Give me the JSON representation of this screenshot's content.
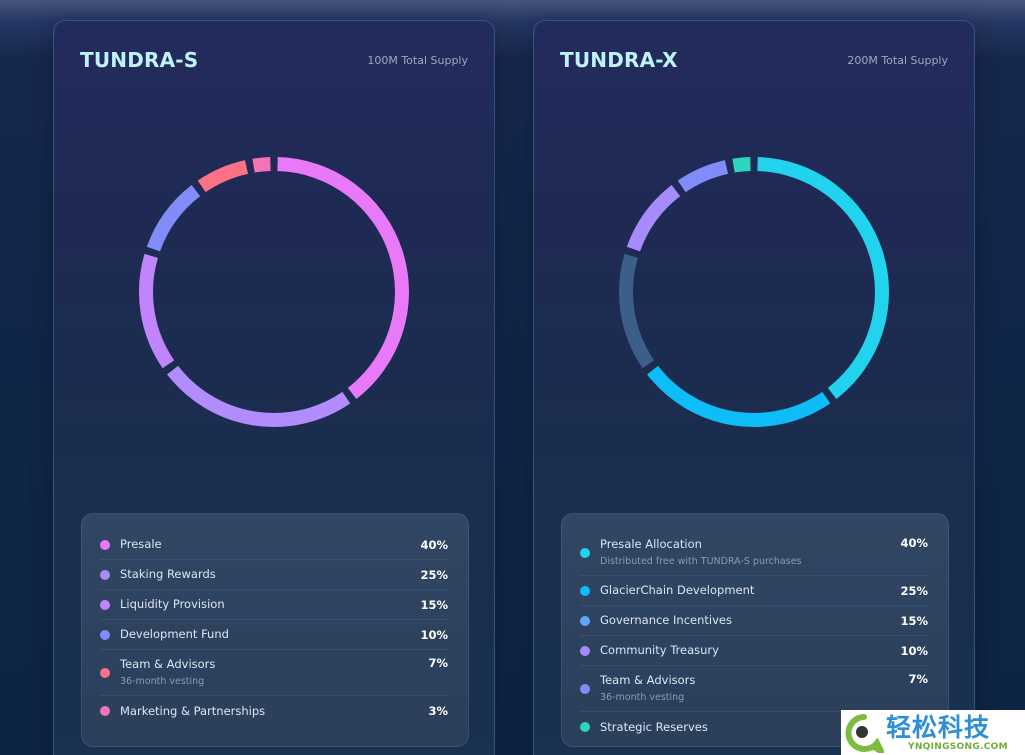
{
  "cards": [
    {
      "title": "TUNDRA-S",
      "supply": "100M Total Supply",
      "items": [
        {
          "label": "Presale",
          "sub": "",
          "pct": "40%",
          "value": 40,
          "color": "#e879f9"
        },
        {
          "label": "Staking Rewards",
          "sub": "",
          "pct": "25%",
          "value": 25,
          "color": "#a78bfa"
        },
        {
          "label": "Liquidity Provision",
          "sub": "",
          "pct": "15%",
          "value": 15,
          "color": "#c084fc"
        },
        {
          "label": "Development Fund",
          "sub": "",
          "pct": "10%",
          "value": 10,
          "color": "#818cf8"
        },
        {
          "label": "Team & Advisors",
          "sub": "36-month vesting",
          "pct": "7%",
          "value": 7,
          "color": "#fb7185"
        },
        {
          "label": "Marketing & Partnerships",
          "sub": "",
          "pct": "3%",
          "value": 3,
          "color": "#f472b6"
        }
      ]
    },
    {
      "title": "TUNDRA-X",
      "supply": "200M Total Supply",
      "items": [
        {
          "label": "Presale Allocation",
          "sub": "Distributed free with TUNDRA-S purchases",
          "pct": "40%",
          "value": 40,
          "color": "#22d3ee"
        },
        {
          "label": "GlacierChain Development",
          "sub": "",
          "pct": "25%",
          "value": 25,
          "color": "#0ebcf7"
        },
        {
          "label": "Governance Incentives",
          "sub": "",
          "pct": "15%",
          "value": 15,
          "color": "#60a5fa"
        },
        {
          "label": "Community Treasury",
          "sub": "",
          "pct": "10%",
          "value": 10,
          "color": "#a78bfa"
        },
        {
          "label": "Team & Advisors",
          "sub": "36-month vesting",
          "pct": "7%",
          "value": 7,
          "color": "#818cf8"
        },
        {
          "label": "Strategic Reserves",
          "sub": "",
          "pct": "3%",
          "value": 3,
          "color": "#2dd4bf"
        }
      ]
    }
  ],
  "chart_data": [
    {
      "type": "pie",
      "title": "TUNDRA-S",
      "subtitle": "100M Total Supply",
      "categories": [
        "Presale",
        "Staking Rewards",
        "Liquidity Provision",
        "Development Fund",
        "Team & Advisors",
        "Marketing & Partnerships"
      ],
      "values": [
        40,
        25,
        15,
        10,
        7,
        3
      ],
      "unit": "%",
      "donut": true,
      "arc_colors": [
        "#e879f9",
        "#b18cfc",
        "#c084fc",
        "#818cf8",
        "#fb7185",
        "#f472b6"
      ],
      "annotations": {
        "Team & Advisors": "36-month vesting"
      },
      "legend_position": "bottom"
    },
    {
      "type": "pie",
      "title": "TUNDRA-X",
      "subtitle": "200M Total Supply",
      "categories": [
        "Presale Allocation",
        "GlacierChain Development",
        "Governance Incentives",
        "Community Treasury",
        "Team & Advisors",
        "Strategic Reserves"
      ],
      "values": [
        40,
        25,
        15,
        10,
        7,
        3
      ],
      "unit": "%",
      "donut": true,
      "arc_colors": [
        "#22d3ee",
        "#0ebcf7",
        "#3b5f88",
        "#a78bfa",
        "#818cf8",
        "#2dd4bf"
      ],
      "annotations": {
        "Presale Allocation": "Distributed free with TUNDRA-S purchases",
        "Team & Advisors": "36-month vesting"
      },
      "legend_position": "bottom"
    }
  ],
  "watermark": {
    "cn": "轻松科技",
    "en": "YNQINGSONG.COM"
  }
}
